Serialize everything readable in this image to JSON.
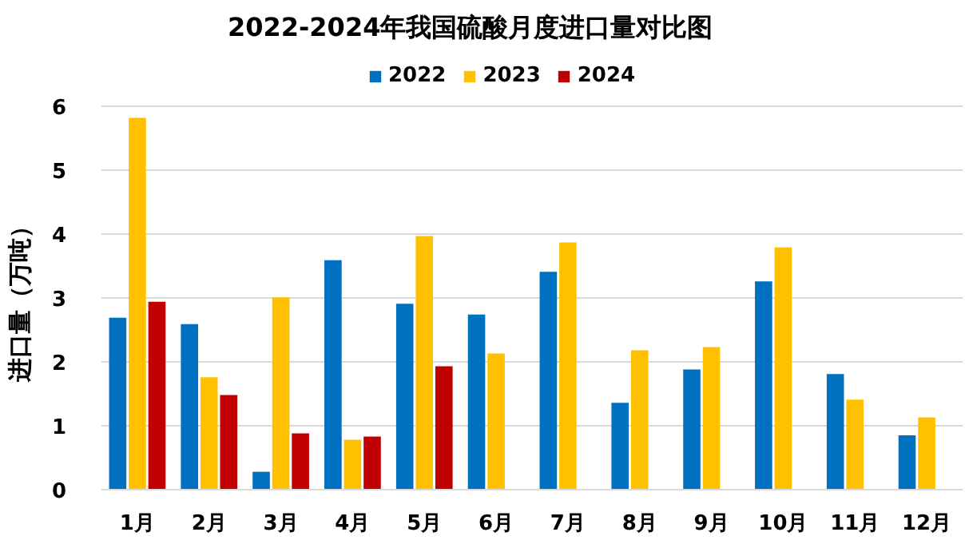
{
  "chart_data": {
    "type": "bar",
    "title": "2022-2024年我国硫酸月度进口量对比图",
    "ylabel": "进口量（万吨）",
    "categories": [
      "1月",
      "2月",
      "3月",
      "4月",
      "5月",
      "6月",
      "7月",
      "8月",
      "9月",
      "10月",
      "11月",
      "12月"
    ],
    "series": [
      {
        "name": "2022",
        "color": "#0070c0",
        "values": [
          2.69,
          2.59,
          0.28,
          3.59,
          2.91,
          2.74,
          3.41,
          1.36,
          1.88,
          3.26,
          1.81,
          0.85
        ]
      },
      {
        "name": "2023",
        "color": "#ffc000",
        "values": [
          5.82,
          1.76,
          3.01,
          0.78,
          3.97,
          2.13,
          3.87,
          2.18,
          2.23,
          3.79,
          1.41,
          1.13
        ]
      },
      {
        "name": "2024",
        "color": "#c00000",
        "values": [
          2.94,
          1.48,
          0.88,
          0.83,
          1.93,
          null,
          null,
          null,
          null,
          null,
          null,
          null
        ]
      }
    ],
    "ylim": [
      0,
      6
    ],
    "yticks": [
      0,
      1,
      2,
      3,
      4,
      5,
      6
    ],
    "grid": "y",
    "legend": "top"
  }
}
